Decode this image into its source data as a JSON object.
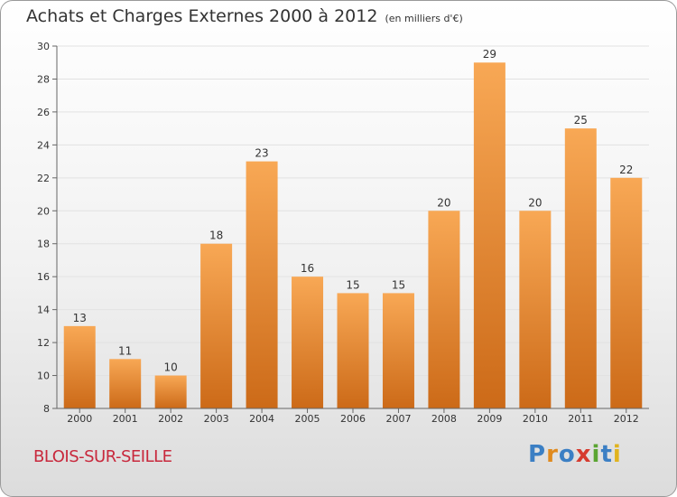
{
  "title": {
    "main": "Achats et Charges Externes 2000 à 2012",
    "unit": "(en milliers d'€)"
  },
  "location": "BLOIS-SUR-SEILLE",
  "logo": {
    "text": "Proxiti",
    "letters": [
      {
        "ch": "P",
        "color": "#3b7fc4"
      },
      {
        "ch": "r",
        "color": "#e08a1e"
      },
      {
        "ch": "o",
        "color": "#3b7fc4"
      },
      {
        "ch": "x",
        "color": "#d63b2f"
      },
      {
        "ch": "i",
        "color": "#5aa532"
      },
      {
        "ch": "t",
        "color": "#3b7fc4"
      },
      {
        "ch": "i",
        "color": "#e0b31e"
      }
    ]
  },
  "colors": {
    "bar_light": "#f8a855",
    "bar_dark": "#cc6a18",
    "axis": "#666666",
    "grid": "#e2e2e2",
    "text": "#333333"
  },
  "chart_data": {
    "type": "bar",
    "title": "Achats et Charges Externes 2000 à 2012",
    "subtitle": "(en milliers d'€)",
    "categories": [
      "2000",
      "2001",
      "2002",
      "2003",
      "2004",
      "2005",
      "2006",
      "2007",
      "2008",
      "2009",
      "2010",
      "2011",
      "2012"
    ],
    "values": [
      13,
      11,
      10,
      18,
      23,
      16,
      15,
      15,
      20,
      29,
      20,
      25,
      22
    ],
    "ylim": [
      8,
      30
    ],
    "yticks": [
      8,
      10,
      12,
      14,
      16,
      18,
      20,
      22,
      24,
      26,
      28,
      30
    ],
    "grid": true,
    "data_labels": true
  }
}
